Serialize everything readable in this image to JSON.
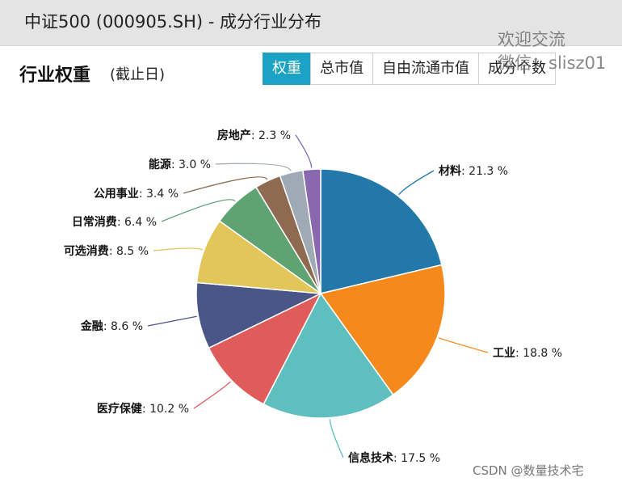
{
  "header": {
    "title": "中证500 (000905.SH) - 成分行业分布"
  },
  "card": {
    "title": "行业权重",
    "subtitle": "(截止日)",
    "tabs": [
      {
        "label": "权重",
        "active": true
      },
      {
        "label": "总市值",
        "active": false
      },
      {
        "label": "自由流通市值",
        "active": false
      },
      {
        "label": "成分个数",
        "active": false
      }
    ]
  },
  "watermark": {
    "line1": "欢迎交流",
    "line2": "微信：slisz01"
  },
  "footer": {
    "credit": "CSDN @数量技术宅"
  },
  "chart_data": {
    "type": "pie",
    "title": "",
    "legend": "none",
    "slices": [
      {
        "label": "材料",
        "value": 21.3,
        "color": "#2278a8"
      },
      {
        "label": "工业",
        "value": 18.8,
        "color": "#f5891c"
      },
      {
        "label": "信息技术",
        "value": 17.5,
        "color": "#5fbfbf"
      },
      {
        "label": "医疗保健",
        "value": 10.2,
        "color": "#e05c5a"
      },
      {
        "label": "金融",
        "value": 8.6,
        "color": "#4a5588"
      },
      {
        "label": "可选消费",
        "value": 8.5,
        "color": "#e3c65a"
      },
      {
        "label": "日常消费",
        "value": 6.4,
        "color": "#5fa373"
      },
      {
        "label": "公用事业",
        "value": 3.4,
        "color": "#8e6a50"
      },
      {
        "label": "能源",
        "value": 3.0,
        "color": "#a0aab4"
      },
      {
        "label": "房地产",
        "value": 2.3,
        "color": "#8a68b0"
      }
    ]
  }
}
